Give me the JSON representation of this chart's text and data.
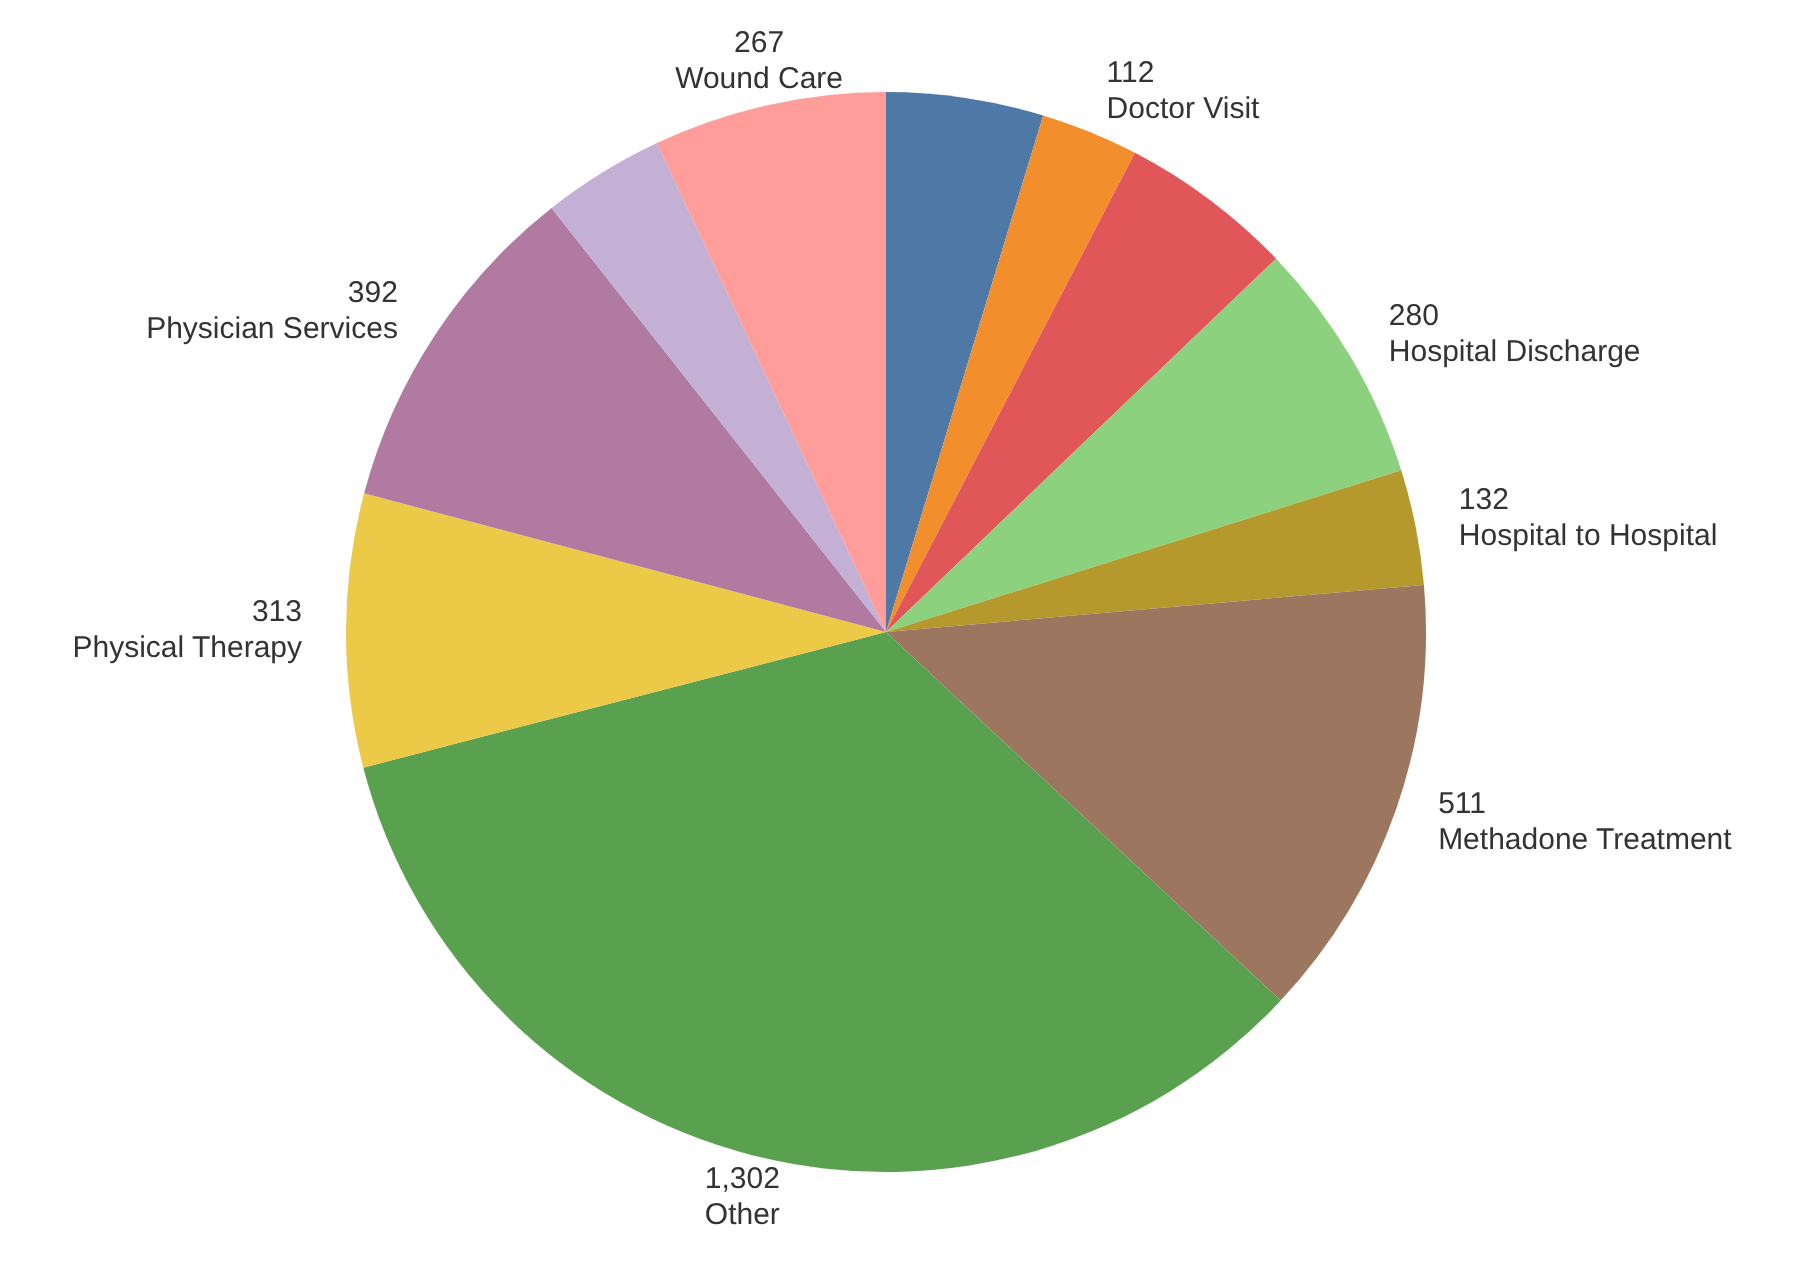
{
  "chart_data": {
    "type": "pie",
    "categories": [
      null,
      "Doctor Visit",
      null,
      "Hospital Discharge",
      "Hospital to Hospital",
      "Methadone Treatment",
      "Other",
      "Physical Therapy",
      "Physician Services",
      null,
      "Wound Care"
    ],
    "values": [
      180,
      112,
      200,
      280,
      132,
      511,
      1302,
      313,
      392,
      140,
      267
    ],
    "value_labels": [
      null,
      "112",
      null,
      "280",
      "132",
      "511",
      "1,302",
      "313",
      "392",
      null,
      "267"
    ],
    "colors": [
      "#4e79a7",
      "#f28e2b",
      "#e15759",
      "#8cd17d",
      "#b6992d",
      "#9d7660",
      "#59a14f",
      "#edc948",
      "#b07aa1",
      "#c5b0d5",
      "#ff9d9a"
    ],
    "legend": false
  }
}
